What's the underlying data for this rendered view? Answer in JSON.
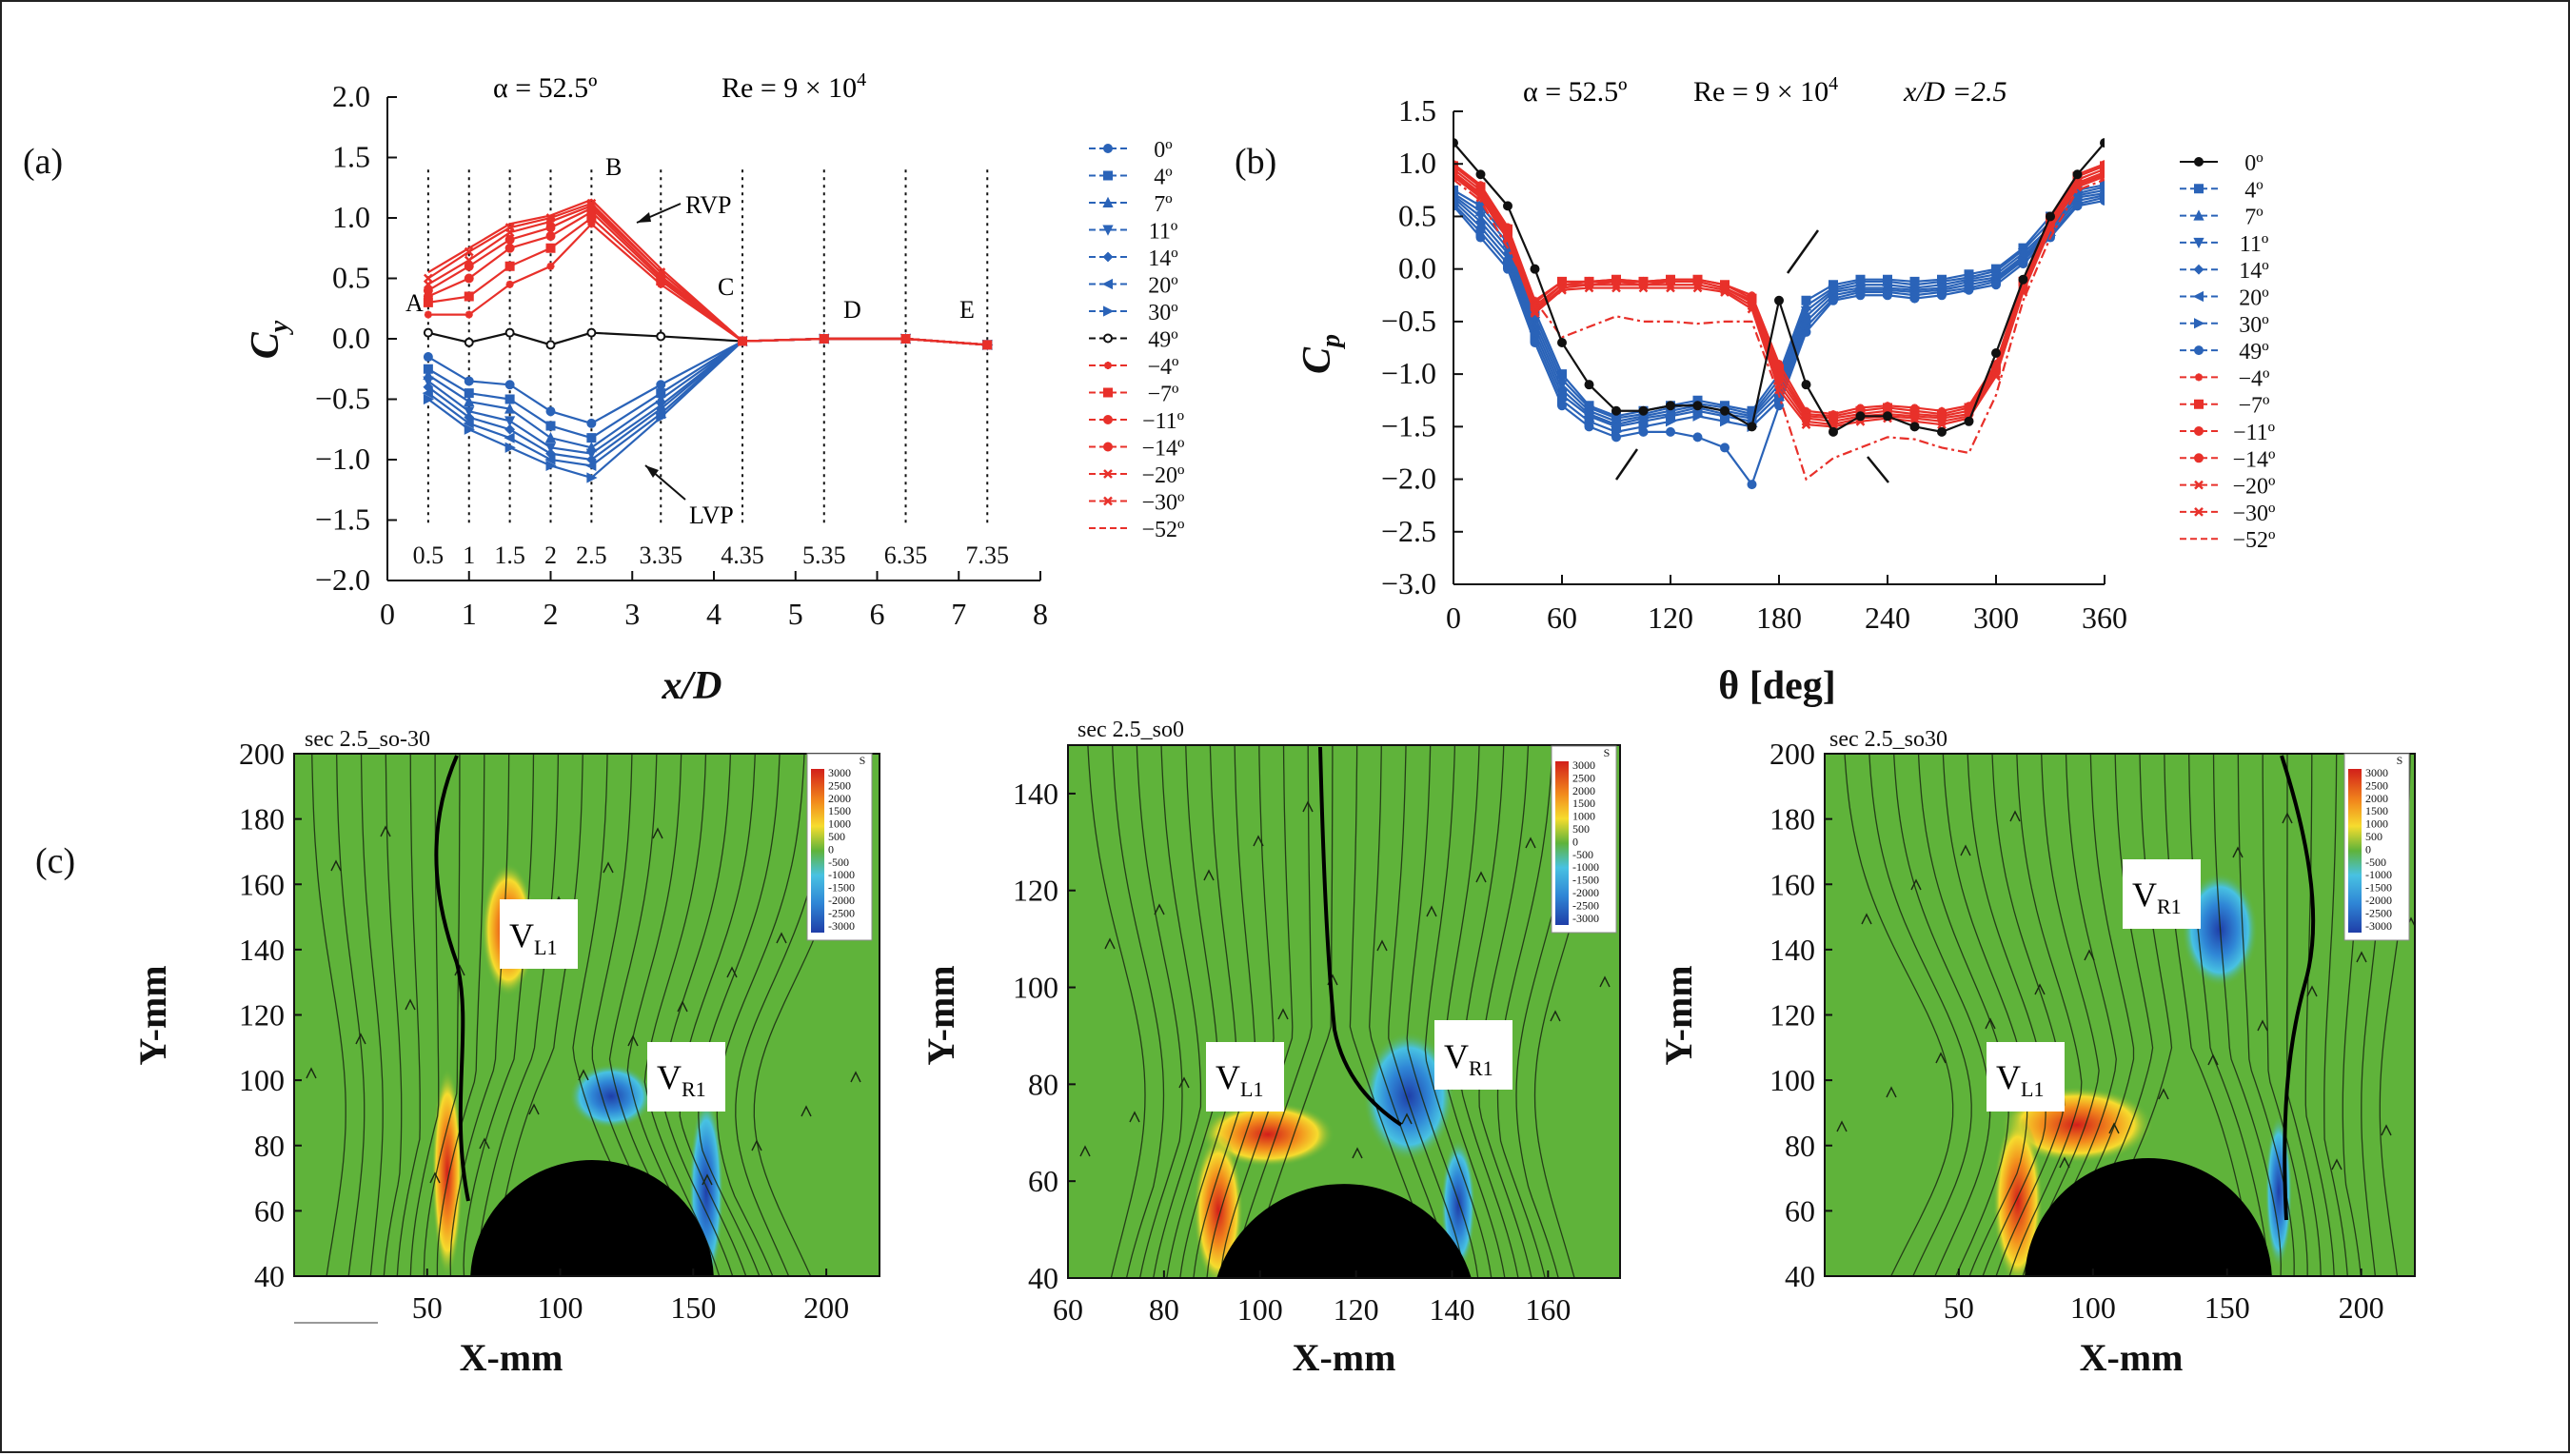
{
  "panel_labels": [
    "(a)",
    "(b)",
    "(c)"
  ],
  "colors": {
    "blue": "#2a63b8",
    "red": "#e8302a",
    "black": "#111111",
    "field": "#5fb33a"
  },
  "chart_data": [
    {
      "id": "a",
      "type": "line",
      "title_alpha": "α = 52.5º",
      "title_re": "Re = 9 × 10",
      "title_re_exp": "4",
      "xlabel": "x/D",
      "ylabel": "C",
      "ylabel_sub": "y",
      "xlim": [
        0,
        8
      ],
      "ylim": [
        -2.0,
        2.0
      ],
      "xticks": [
        "0",
        "1",
        "2",
        "3",
        "4",
        "5",
        "6",
        "7",
        "8"
      ],
      "yticks": [
        "2.0",
        "1.5",
        "1.0",
        "0.5",
        "0.0",
        "−0.5",
        "−1.0",
        "−1.5",
        "−2.0"
      ],
      "station_x": [
        0.5,
        1,
        1.5,
        2,
        2.5,
        3.35,
        4.35,
        5.35,
        6.35,
        7.35
      ],
      "station_labels": [
        "0.5",
        "1",
        "1.5",
        "2",
        "2.5",
        "3.35",
        "4.35",
        "5.35",
        "6.35",
        "7.35"
      ],
      "point_labels": [
        "A",
        "B",
        "C",
        "D",
        "E"
      ],
      "annotations": [
        "RVP",
        "LVP"
      ],
      "x": [
        0.5,
        1,
        1.5,
        2,
        2.5,
        3.35,
        4.35,
        5.35,
        6.35,
        7.35
      ],
      "series": [
        {
          "name": "0º",
          "color": "blue",
          "values": [
            -0.15,
            -0.35,
            -0.38,
            -0.6,
            -0.7,
            -0.38,
            -0.02,
            0.0,
            0.0,
            -0.05
          ]
        },
        {
          "name": "4º",
          "color": "blue",
          "values": [
            -0.25,
            -0.45,
            -0.5,
            -0.72,
            -0.82,
            -0.45,
            -0.02,
            0.0,
            0.0,
            -0.05
          ]
        },
        {
          "name": "7º",
          "color": "blue",
          "values": [
            -0.3,
            -0.52,
            -0.58,
            -0.82,
            -0.9,
            -0.5,
            -0.02,
            0.0,
            0.0,
            -0.05
          ]
        },
        {
          "name": "11º",
          "color": "blue",
          "values": [
            -0.35,
            -0.6,
            -0.68,
            -0.9,
            -0.95,
            -0.55,
            -0.02,
            0.0,
            0.0,
            -0.05
          ]
        },
        {
          "name": "14º",
          "color": "blue",
          "values": [
            -0.4,
            -0.65,
            -0.75,
            -0.95,
            -1.0,
            -0.58,
            -0.02,
            0.0,
            0.0,
            -0.05
          ]
        },
        {
          "name": "20º",
          "color": "blue",
          "values": [
            -0.45,
            -0.7,
            -0.82,
            -1.0,
            -1.05,
            -0.62,
            -0.02,
            0.0,
            0.0,
            -0.05
          ]
        },
        {
          "name": "30º",
          "color": "blue",
          "values": [
            -0.5,
            -0.75,
            -0.9,
            -1.05,
            -1.15,
            -0.65,
            -0.02,
            0.0,
            0.0,
            -0.05
          ]
        },
        {
          "name": "49º",
          "color": "black",
          "values": [
            0.05,
            -0.03,
            0.05,
            -0.05,
            0.05,
            0.02,
            -0.02,
            0.0,
            0.0,
            -0.05
          ]
        },
        {
          "name": "−4º",
          "color": "red",
          "values": [
            0.2,
            0.2,
            0.45,
            0.6,
            0.95,
            0.45,
            -0.02,
            0.0,
            0.0,
            -0.05
          ]
        },
        {
          "name": "−7º",
          "color": "red",
          "values": [
            0.3,
            0.35,
            0.6,
            0.75,
            1.0,
            0.48,
            -0.02,
            0.0,
            0.0,
            -0.05
          ]
        },
        {
          "name": "−11º",
          "color": "red",
          "values": [
            0.35,
            0.5,
            0.75,
            0.85,
            1.05,
            0.5,
            -0.02,
            0.0,
            0.0,
            -0.05
          ]
        },
        {
          "name": "−14º",
          "color": "red",
          "values": [
            0.4,
            0.6,
            0.82,
            0.92,
            1.08,
            0.52,
            -0.02,
            0.0,
            0.0,
            -0.05
          ]
        },
        {
          "name": "−20º",
          "color": "red",
          "values": [
            0.45,
            0.65,
            0.88,
            0.97,
            1.1,
            0.55,
            -0.02,
            0.0,
            0.0,
            -0.05
          ]
        },
        {
          "name": "−30º",
          "color": "red",
          "values": [
            0.5,
            0.72,
            0.92,
            1.0,
            1.12,
            0.55,
            -0.02,
            0.0,
            0.0,
            -0.05
          ]
        },
        {
          "name": "−52º",
          "color": "red",
          "values": [
            0.55,
            0.75,
            0.95,
            1.02,
            1.15,
            0.58,
            -0.02,
            0.0,
            0.0,
            -0.05
          ]
        }
      ]
    },
    {
      "id": "b",
      "type": "line",
      "title_alpha": "α = 52.5º",
      "title_re": "Re = 9 × 10",
      "title_re_exp": "4",
      "title_xd": "x/D =2.5",
      "xlabel": "θ [deg]",
      "ylabel": "C",
      "ylabel_sub": "p",
      "xlim": [
        0,
        360
      ],
      "ylim": [
        -3.0,
        1.5
      ],
      "xticks": [
        "0",
        "60",
        "120",
        "180",
        "240",
        "300",
        "360"
      ],
      "yticks": [
        "1.5",
        "1.0",
        "0.5",
        "0.0",
        "−0.5",
        "−1.0",
        "−1.5",
        "−2.0",
        "−2.5",
        "−3.0"
      ],
      "x": [
        0,
        15,
        30,
        45,
        60,
        75,
        90,
        105,
        120,
        135,
        150,
        165,
        180,
        195,
        210,
        225,
        240,
        255,
        270,
        285,
        300,
        315,
        330,
        345,
        360
      ],
      "series": [
        {
          "name": "0º",
          "color": "black",
          "values": [
            1.2,
            0.9,
            0.6,
            0.0,
            -0.7,
            -1.1,
            -1.35,
            -1.35,
            -1.3,
            -1.3,
            -1.35,
            -1.5,
            -0.3,
            -1.1,
            -1.55,
            -1.4,
            -1.4,
            -1.5,
            -1.55,
            -1.45,
            -0.8,
            -0.1,
            0.5,
            0.9,
            1.2
          ]
        },
        {
          "name": "4º",
          "color": "blue",
          "values": [
            0.75,
            0.6,
            0.3,
            -0.4,
            -1.0,
            -1.3,
            -1.4,
            -1.35,
            -1.3,
            -1.25,
            -1.3,
            -1.35,
            -1.0,
            -0.3,
            -0.15,
            -0.1,
            -0.1,
            -0.12,
            -0.1,
            -0.05,
            0.0,
            0.2,
            0.5,
            0.75,
            0.8
          ]
        },
        {
          "name": "7º",
          "color": "blue",
          "values": [
            0.72,
            0.55,
            0.25,
            -0.45,
            -1.05,
            -1.32,
            -1.42,
            -1.38,
            -1.32,
            -1.28,
            -1.32,
            -1.38,
            -1.05,
            -0.35,
            -0.18,
            -0.12,
            -0.12,
            -0.15,
            -0.12,
            -0.08,
            -0.02,
            0.18,
            0.45,
            0.72,
            0.78
          ]
        },
        {
          "name": "11º",
          "color": "blue",
          "values": [
            0.7,
            0.5,
            0.2,
            -0.5,
            -1.1,
            -1.35,
            -1.45,
            -1.4,
            -1.35,
            -1.3,
            -1.35,
            -1.4,
            -1.1,
            -0.4,
            -0.2,
            -0.15,
            -0.15,
            -0.18,
            -0.15,
            -0.1,
            -0.05,
            0.15,
            0.4,
            0.7,
            0.75
          ]
        },
        {
          "name": "14º",
          "color": "blue",
          "values": [
            0.68,
            0.45,
            0.15,
            -0.55,
            -1.15,
            -1.38,
            -1.48,
            -1.42,
            -1.38,
            -1.32,
            -1.38,
            -1.42,
            -1.15,
            -0.45,
            -0.22,
            -0.18,
            -0.18,
            -0.2,
            -0.18,
            -0.12,
            -0.08,
            0.12,
            0.38,
            0.68,
            0.72
          ]
        },
        {
          "name": "20º",
          "color": "blue",
          "values": [
            0.65,
            0.4,
            0.1,
            -0.6,
            -1.2,
            -1.4,
            -1.5,
            -1.45,
            -1.4,
            -1.35,
            -1.4,
            -1.45,
            -1.2,
            -0.5,
            -0.25,
            -0.2,
            -0.2,
            -0.22,
            -0.2,
            -0.15,
            -0.1,
            0.1,
            0.35,
            0.65,
            0.7
          ]
        },
        {
          "name": "30º",
          "color": "blue",
          "values": [
            0.62,
            0.35,
            0.05,
            -0.65,
            -1.25,
            -1.45,
            -1.55,
            -1.5,
            -1.45,
            -1.4,
            -1.45,
            -1.5,
            -1.25,
            -0.55,
            -0.28,
            -0.22,
            -0.22,
            -0.25,
            -0.22,
            -0.18,
            -0.12,
            0.08,
            0.32,
            0.62,
            0.68
          ]
        },
        {
          "name": "49º",
          "color": "blue",
          "values": [
            0.6,
            0.3,
            0.0,
            -0.7,
            -1.3,
            -1.5,
            -1.6,
            -1.55,
            -1.55,
            -1.6,
            -1.7,
            -2.05,
            -1.3,
            -0.6,
            -0.3,
            -0.25,
            -0.25,
            -0.28,
            -0.25,
            -0.2,
            -0.15,
            0.05,
            0.3,
            0.6,
            0.65
          ]
        },
        {
          "name": "−4º",
          "color": "red",
          "values": [
            1.0,
            0.8,
            0.4,
            -0.3,
            -0.12,
            -0.12,
            -0.1,
            -0.12,
            -0.1,
            -0.1,
            -0.15,
            -0.25,
            -0.9,
            -1.35,
            -1.38,
            -1.32,
            -1.3,
            -1.32,
            -1.35,
            -1.3,
            -0.9,
            -0.1,
            0.5,
            0.9,
            1.0
          ]
        },
        {
          "name": "−7º",
          "color": "red",
          "values": [
            0.98,
            0.78,
            0.38,
            -0.32,
            -0.12,
            -0.12,
            -0.1,
            -0.12,
            -0.1,
            -0.1,
            -0.15,
            -0.28,
            -0.95,
            -1.38,
            -1.4,
            -1.35,
            -1.32,
            -1.35,
            -1.38,
            -1.32,
            -0.92,
            -0.12,
            0.48,
            0.88,
            0.98
          ]
        },
        {
          "name": "−11º",
          "color": "red",
          "values": [
            0.95,
            0.75,
            0.35,
            -0.35,
            -0.15,
            -0.12,
            -0.12,
            -0.12,
            -0.12,
            -0.12,
            -0.18,
            -0.3,
            -1.0,
            -1.4,
            -1.42,
            -1.38,
            -1.35,
            -1.38,
            -1.4,
            -1.35,
            -0.95,
            -0.15,
            0.45,
            0.85,
            0.95
          ]
        },
        {
          "name": "−14º",
          "color": "red",
          "values": [
            0.92,
            0.72,
            0.32,
            -0.38,
            -0.15,
            -0.15,
            -0.12,
            -0.15,
            -0.12,
            -0.12,
            -0.18,
            -0.32,
            -1.05,
            -1.42,
            -1.45,
            -1.4,
            -1.38,
            -1.4,
            -1.42,
            -1.38,
            -0.98,
            -0.18,
            0.42,
            0.82,
            0.92
          ]
        },
        {
          "name": "−20º",
          "color": "red",
          "values": [
            0.9,
            0.7,
            0.3,
            -0.4,
            -0.18,
            -0.15,
            -0.15,
            -0.15,
            -0.15,
            -0.15,
            -0.2,
            -0.35,
            -1.1,
            -1.45,
            -1.48,
            -1.42,
            -1.4,
            -1.42,
            -1.45,
            -1.4,
            -1.0,
            -0.2,
            0.4,
            0.8,
            0.9
          ]
        },
        {
          "name": "−30º",
          "color": "red",
          "values": [
            0.88,
            0.68,
            0.28,
            -0.42,
            -0.2,
            -0.18,
            -0.18,
            -0.18,
            -0.18,
            -0.18,
            -0.22,
            -0.38,
            -1.15,
            -1.48,
            -1.5,
            -1.45,
            -1.42,
            -1.45,
            -1.48,
            -1.42,
            -1.02,
            -0.22,
            0.38,
            0.78,
            0.88
          ]
        },
        {
          "name": "−52º",
          "color": "red",
          "values": [
            0.85,
            0.65,
            0.2,
            -0.3,
            -0.65,
            -0.55,
            -0.45,
            -0.5,
            -0.5,
            -0.52,
            -0.5,
            -0.5,
            -1.2,
            -2.0,
            -1.8,
            -1.7,
            -1.6,
            -1.62,
            -1.7,
            -1.75,
            -1.2,
            -0.3,
            0.3,
            0.75,
            0.85
          ]
        }
      ]
    },
    {
      "id": "c1",
      "type": "heatmap",
      "title": "sec 2.5_so-30",
      "xlabel": "X-mm",
      "ylabel": "Y-mm",
      "xlim": [
        0,
        220
      ],
      "ylim": [
        40,
        200
      ],
      "xticks": [
        50,
        100,
        150,
        200
      ],
      "yticks": [
        200,
        180,
        160,
        140,
        120,
        100,
        80,
        60,
        40
      ],
      "colorbar": {
        "title": "S",
        "labels": [
          "3000",
          "2500",
          "2000",
          "1500",
          "1000",
          "500",
          "0",
          "-500",
          "-1000",
          "-1500",
          "-2000",
          "-2500",
          "-3000"
        ]
      },
      "vortex_labels": [
        {
          "main": "V",
          "sub": "L1"
        },
        {
          "main": "V",
          "sub": "R1"
        }
      ]
    },
    {
      "id": "c2",
      "type": "heatmap",
      "title": "sec 2.5_so0",
      "xlabel": "X-mm",
      "ylabel": "Y-mm",
      "xlim": [
        60,
        175
      ],
      "ylim": [
        40,
        150
      ],
      "xticks": [
        60,
        80,
        100,
        120,
        140,
        160
      ],
      "yticks": [
        140,
        120,
        100,
        80,
        60,
        40
      ],
      "colorbar": {
        "title": "S",
        "labels": [
          "3000",
          "2500",
          "2000",
          "1500",
          "1000",
          "500",
          "0",
          "-500",
          "-1000",
          "-1500",
          "-2000",
          "-2500",
          "-3000"
        ]
      },
      "vortex_labels": [
        {
          "main": "V",
          "sub": "L1"
        },
        {
          "main": "V",
          "sub": "R1"
        }
      ]
    },
    {
      "id": "c3",
      "type": "heatmap",
      "title": "sec 2.5_so30",
      "xlabel": "X-mm",
      "ylabel": "Y-mm",
      "xlim": [
        0,
        220
      ],
      "ylim": [
        40,
        200
      ],
      "xticks": [
        50,
        100,
        150,
        200
      ],
      "yticks": [
        200,
        180,
        160,
        140,
        120,
        100,
        80,
        60,
        40
      ],
      "colorbar": {
        "title": "S",
        "labels": [
          "3000",
          "2500",
          "2000",
          "1500",
          "1000",
          "500",
          "0",
          "-500",
          "-1000",
          "-1500",
          "-2000",
          "-2500",
          "-3000"
        ]
      },
      "vortex_labels": [
        {
          "main": "V",
          "sub": "R1"
        },
        {
          "main": "V",
          "sub": "L1"
        }
      ]
    }
  ]
}
